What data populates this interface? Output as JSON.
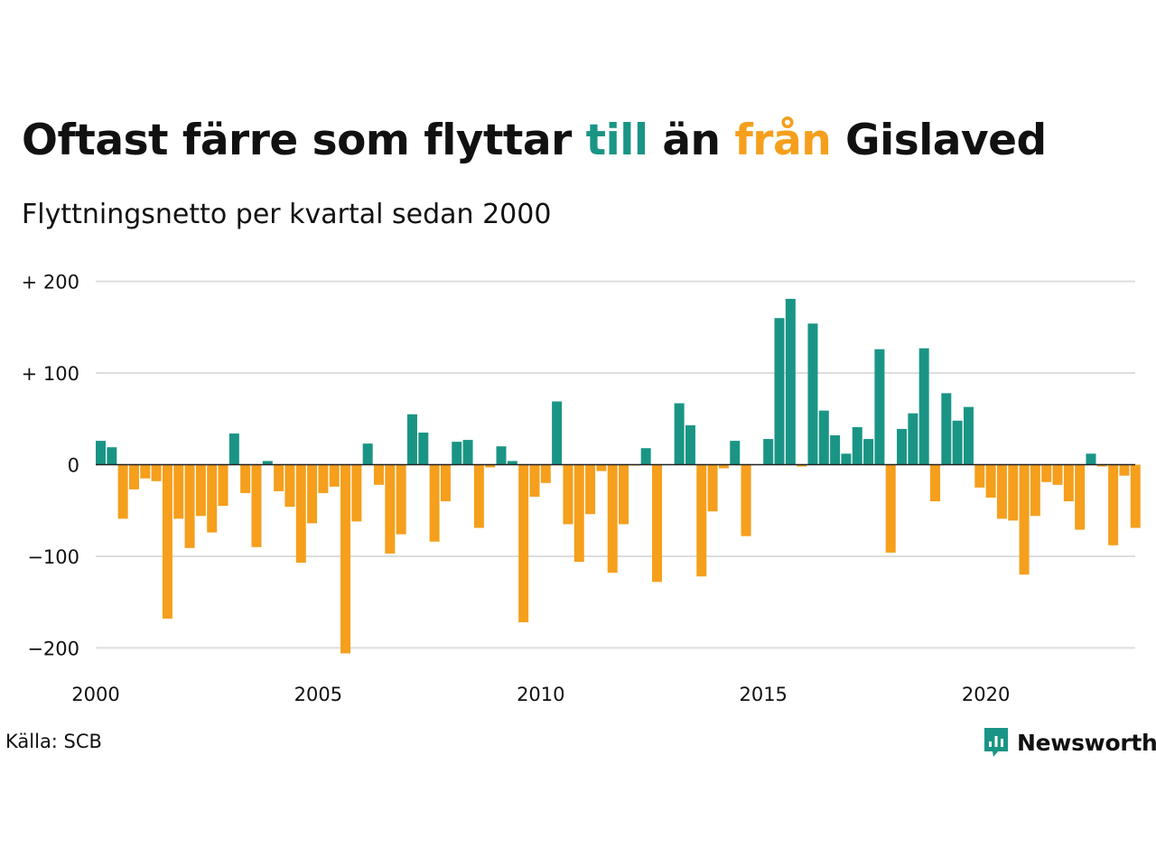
{
  "header": {
    "title_parts": [
      "Oftast färre som flyttar ",
      "till",
      " än ",
      "från",
      " Gislaved"
    ],
    "subtitle": "Flyttningsnetto per kvartal sedan 2000"
  },
  "footer": {
    "source": "Källa: SCB",
    "logo_text": "Newsworthy",
    "logo_icon": "newsworthy-logo-icon"
  },
  "colors": {
    "positive": "#1a9585",
    "negative": "#f59f1c",
    "grid": "#dddddd",
    "zero_line": "#222222",
    "text": "#111111"
  },
  "chart_data": {
    "type": "bar",
    "title": "Oftast färre som flyttar till än från Gislaved",
    "subtitle": "Flyttningsnetto per kvartal sedan 2000",
    "xlabel": "",
    "ylabel": "",
    "x_start": "2000 Q1",
    "x_end": "2023 Q2",
    "ylim": [
      -215,
      215
    ],
    "y_ticks": [
      200,
      100,
      0,
      -100,
      -200
    ],
    "y_tick_labels": [
      "+ 200",
      "+ 100",
      "0",
      "−100",
      "−200"
    ],
    "x_ticks": [
      2000,
      2005,
      2010,
      2015,
      2020
    ],
    "x_tick_labels": [
      "2000",
      "2005",
      "2010",
      "2015",
      "2020"
    ],
    "grid": true,
    "legend": "none",
    "series": [
      {
        "values": [
          26,
          19,
          -59,
          -27,
          -15,
          -18,
          -168,
          -59,
          -91,
          -56,
          -74,
          -45,
          34,
          -31,
          -90,
          4,
          -29,
          -46,
          -107,
          -64,
          -31,
          -24,
          -206,
          -62,
          23,
          -22,
          -97,
          -76,
          55,
          35,
          -84,
          -40,
          25,
          27,
          -69,
          -3,
          20,
          4,
          -172,
          -35,
          -20,
          69,
          -65,
          -106,
          -54,
          -7,
          -118,
          -65,
          -1,
          18,
          -128,
          0,
          67,
          43,
          -122,
          -51,
          -4,
          26,
          -78,
          0,
          28,
          160,
          181,
          -2,
          154,
          59,
          32,
          12,
          41,
          28,
          126,
          -96,
          39,
          56,
          127,
          -40,
          78,
          48,
          63,
          -25,
          -36,
          -59,
          -61,
          -120,
          -56,
          -19,
          -22,
          -40,
          -71,
          12,
          -2,
          -88,
          -12,
          -69
        ]
      }
    ]
  }
}
